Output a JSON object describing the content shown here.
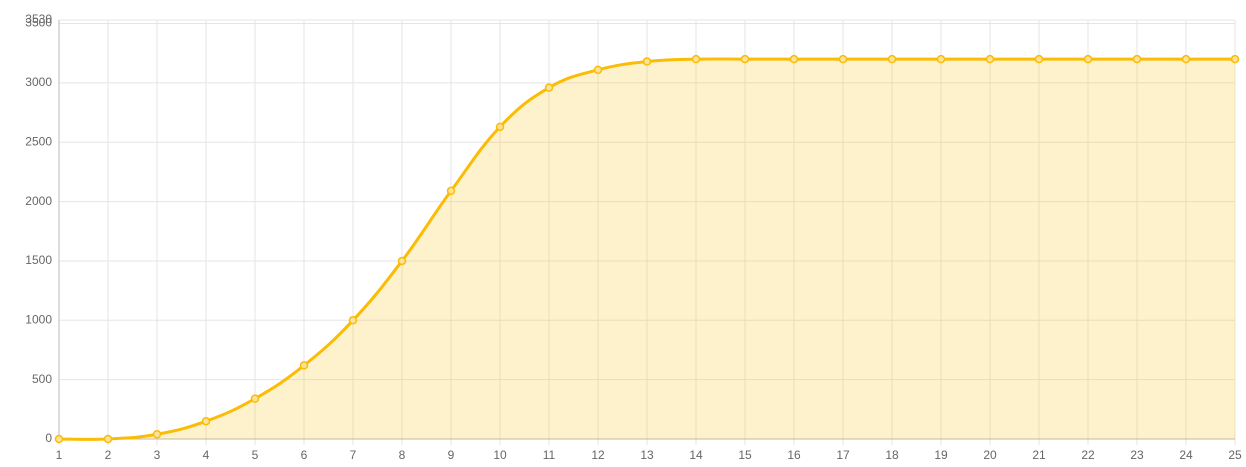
{
  "chart_data": {
    "type": "line",
    "x": [
      1,
      2,
      3,
      4,
      5,
      6,
      7,
      8,
      9,
      10,
      11,
      12,
      13,
      14,
      15,
      16,
      17,
      18,
      19,
      20,
      21,
      22,
      23,
      24,
      25
    ],
    "values": [
      0,
      0,
      40,
      150,
      340,
      620,
      1000,
      1500,
      2090,
      2630,
      2960,
      3110,
      3180,
      3200,
      3200,
      3200,
      3200,
      3200,
      3200,
      3200,
      3200,
      3200,
      3200,
      3200,
      3200
    ],
    "color": "#fbbc05",
    "xlim": [
      1,
      25
    ],
    "xticks": [
      1,
      2,
      3,
      4,
      5,
      6,
      7,
      8,
      9,
      10,
      11,
      12,
      13,
      14,
      15,
      16,
      17,
      18,
      19,
      20,
      21,
      22,
      23,
      24,
      25
    ],
    "ylim": [
      0,
      3530
    ],
    "yticks": [
      0,
      500,
      1000,
      1500,
      2000,
      2500,
      3000,
      3500,
      3530
    ],
    "grid": true,
    "fill": true
  }
}
